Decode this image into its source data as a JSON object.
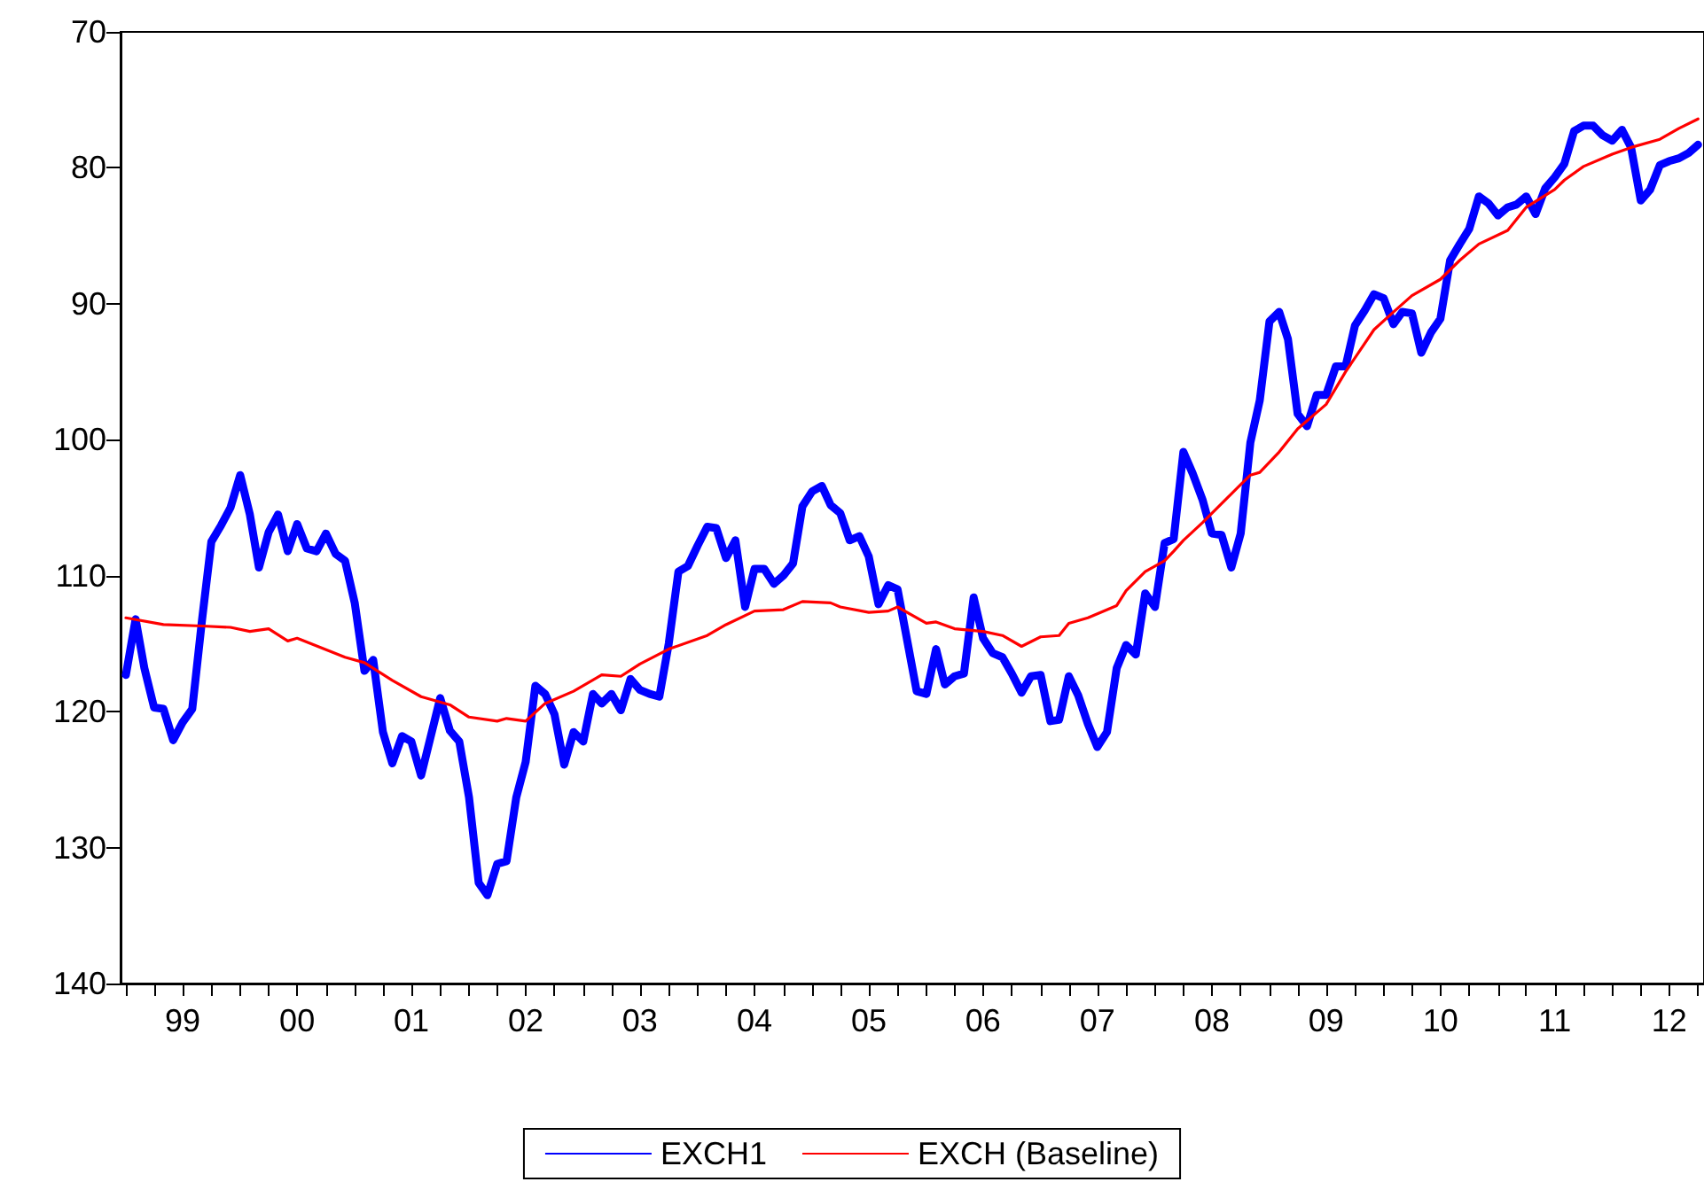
{
  "chart_data": {
    "type": "line",
    "x": [
      "1999-01",
      "1999-02",
      "1999-03",
      "1999-04",
      "1999-05",
      "1999-06",
      "1999-07",
      "1999-08",
      "1999-09",
      "1999-10",
      "1999-11",
      "1999-12",
      "2000-01",
      "2000-02",
      "2000-03",
      "2000-04",
      "2000-05",
      "2000-06",
      "2000-07",
      "2000-08",
      "2000-09",
      "2000-10",
      "2000-11",
      "2000-12",
      "2001-01",
      "2001-02",
      "2001-03",
      "2001-04",
      "2001-05",
      "2001-06",
      "2001-07",
      "2001-08",
      "2001-09",
      "2001-10",
      "2001-11",
      "2001-12",
      "2002-01",
      "2002-02",
      "2002-03",
      "2002-04",
      "2002-05",
      "2002-06",
      "2002-07",
      "2002-08",
      "2002-09",
      "2002-10",
      "2002-11",
      "2002-12",
      "2003-01",
      "2003-02",
      "2003-03",
      "2003-04",
      "2003-05",
      "2003-06",
      "2003-07",
      "2003-08",
      "2003-09",
      "2003-10",
      "2003-11",
      "2003-12",
      "2004-01",
      "2004-02",
      "2004-03",
      "2004-04",
      "2004-05",
      "2004-06",
      "2004-07",
      "2004-08",
      "2004-09",
      "2004-10",
      "2004-11",
      "2004-12",
      "2005-01",
      "2005-02",
      "2005-03",
      "2005-04",
      "2005-05",
      "2005-06",
      "2005-07",
      "2005-08",
      "2005-09",
      "2005-10",
      "2005-11",
      "2005-12",
      "2006-01",
      "2006-02",
      "2006-03",
      "2006-04",
      "2006-05",
      "2006-06",
      "2006-07",
      "2006-08",
      "2006-09",
      "2006-10",
      "2006-11",
      "2006-12",
      "2007-01",
      "2007-02",
      "2007-03",
      "2007-04",
      "2007-05",
      "2007-06",
      "2007-07",
      "2007-08",
      "2007-09",
      "2007-10",
      "2007-11",
      "2007-12",
      "2008-01",
      "2008-02",
      "2008-03",
      "2008-04",
      "2008-05",
      "2008-06",
      "2008-07",
      "2008-08",
      "2008-09",
      "2008-10",
      "2008-11",
      "2008-12",
      "2009-01",
      "2009-02",
      "2009-03",
      "2009-04",
      "2009-05",
      "2009-06",
      "2009-07",
      "2009-08",
      "2009-09",
      "2009-10",
      "2009-11",
      "2009-12",
      "2010-01",
      "2010-02",
      "2010-03",
      "2010-04",
      "2010-05",
      "2010-06",
      "2010-07",
      "2010-08",
      "2010-09",
      "2010-10",
      "2010-11",
      "2010-12",
      "2011-01",
      "2011-02",
      "2011-03",
      "2011-04",
      "2011-05",
      "2011-06",
      "2011-07",
      "2011-08",
      "2011-09",
      "2011-10",
      "2011-11",
      "2011-12",
      "2012-01",
      "2012-02",
      "2012-03",
      "2012-04",
      "2012-05",
      "2012-06",
      "2012-07",
      "2012-08",
      "2012-09",
      "2012-10"
    ],
    "series": [
      {
        "name": "EXCH1",
        "color": "#0000ff",
        "values": [
          117.3,
          113.2,
          116.8,
          119.7,
          119.8,
          122.1,
          120.8,
          119.8,
          113.3,
          107.5,
          106.3,
          105,
          102.6,
          105.5,
          109.4,
          106.8,
          105.5,
          108.2,
          106.2,
          108,
          108.2,
          106.9,
          108.4,
          108.9,
          112,
          117,
          116.2,
          121.5,
          123.8,
          121.8,
          122.2,
          124.7,
          121.8,
          119,
          121.4,
          122.2,
          126.3,
          132.6,
          133.5,
          131.2,
          131,
          126.3,
          123.7,
          118.1,
          118.7,
          120.2,
          123.9,
          121.5,
          122.2,
          118.7,
          119.4,
          118.7,
          119.9,
          117.6,
          118.4,
          118.7,
          118.9,
          115,
          109.7,
          109.3,
          107.8,
          106.4,
          106.5,
          108.7,
          107.4,
          112.3,
          109.5,
          109.5,
          110.6,
          110,
          109.1,
          104.9,
          103.8,
          103.4,
          104.8,
          105.4,
          107.4,
          107.1,
          108.6,
          112.1,
          110.7,
          111,
          114.8,
          118.5,
          118.7,
          115.4,
          118,
          117.4,
          117.2,
          111.6,
          114.6,
          115.7,
          116,
          117.2,
          118.6,
          117.4,
          117.3,
          120.7,
          120.6,
          117.4,
          118.8,
          120.9,
          122.6,
          121.5,
          116.8,
          115.1,
          115.8,
          111.3,
          112.3,
          107.6,
          107.3,
          100.9,
          102.5,
          104.4,
          106.9,
          107,
          109.4,
          106.9,
          100.2,
          97.1,
          91.3,
          90.6,
          92.6,
          98.1,
          99,
          96.7,
          96.7,
          94.6,
          94.6,
          91.6,
          90.5,
          89.3,
          89.6,
          91.5,
          90.6,
          90.7,
          93.6,
          92.1,
          91.1,
          86.8,
          85.6,
          84.5,
          82.1,
          82.6,
          83.5,
          82.9,
          82.7,
          82.1,
          83.4,
          81.5,
          80.7,
          79.7,
          77.3,
          76.9,
          76.9,
          77.6,
          78,
          77.2,
          78.5,
          82.4,
          81.6,
          79.8,
          79.5,
          79.3,
          78.9,
          78.3
        ]
      },
      {
        "name": "EXCH (Baseline)",
        "color": "#ff0000",
        "x": [
          "1999-01",
          "1999-05",
          "1999-09",
          "1999-12",
          "2000-02",
          "2000-04",
          "2000-06",
          "2000-07",
          "2000-12",
          "2001-02",
          "2001-05",
          "2001-08",
          "2001-11",
          "2002-01",
          "2002-04",
          "2002-05",
          "2002-07",
          "2002-09",
          "2002-12",
          "2003-03",
          "2003-05",
          "2003-07",
          "2003-10",
          "2004-02",
          "2004-04",
          "2004-07",
          "2004-10",
          "2004-12",
          "2005-03",
          "2005-04",
          "2005-07",
          "2005-09",
          "2005-10",
          "2006-01",
          "2006-02",
          "2006-04",
          "2006-07",
          "2006-09",
          "2006-11",
          "2007-01",
          "2007-03",
          "2007-04",
          "2007-06",
          "2007-09",
          "2007-10",
          "2007-12",
          "2008-02",
          "2008-03",
          "2008-04",
          "2008-06",
          "2008-10",
          "2008-11",
          "2008-12",
          "2009-02",
          "2009-04",
          "2009-07",
          "2009-09",
          "2009-12",
          "2010-02",
          "2010-04",
          "2010-07",
          "2010-09",
          "2010-11",
          "2011-02",
          "2011-04",
          "2011-07",
          "2011-08",
          "2011-10",
          "2012-01",
          "2012-03",
          "2012-06",
          "2012-08",
          "2012-10"
        ],
        "values": [
          113.1,
          113.6,
          113.7,
          113.8,
          114.1,
          113.9,
          114.8,
          114.6,
          116,
          116.4,
          117.7,
          118.9,
          119.5,
          120.4,
          120.7,
          120.5,
          120.7,
          119.4,
          118.5,
          117.3,
          117.4,
          116.5,
          115.4,
          114.4,
          113.6,
          112.6,
          112.5,
          111.9,
          112,
          112.3,
          112.7,
          112.6,
          112.3,
          113.5,
          113.4,
          113.9,
          114.1,
          114.4,
          115.2,
          114.5,
          114.4,
          113.5,
          113.1,
          112.2,
          111.1,
          109.7,
          108.9,
          108.2,
          107.4,
          106.1,
          103.3,
          102.6,
          102.4,
          100.9,
          99.2,
          97.4,
          95,
          91.9,
          90.6,
          89.4,
          88.2,
          86.8,
          85.6,
          84.6,
          82.9,
          81.6,
          80.9,
          79.9,
          79,
          78.5,
          77.9,
          77.1,
          76.4
        ]
      }
    ],
    "xlim": [
      "1998-12-15",
      "2012-10-20"
    ],
    "xticks": [
      {
        "value": "1999-01",
        "label": null
      },
      {
        "value": "1999-04",
        "label": null
      },
      {
        "value": "1999-07",
        "label": "99"
      },
      {
        "value": "1999-10",
        "label": null
      },
      {
        "value": "2000-01",
        "label": null
      },
      {
        "value": "2000-04",
        "label": null
      },
      {
        "value": "2000-07",
        "label": "00"
      },
      {
        "value": "2000-10",
        "label": null
      },
      {
        "value": "2001-01",
        "label": null
      },
      {
        "value": "2001-04",
        "label": null
      },
      {
        "value": "2001-07",
        "label": "01"
      },
      {
        "value": "2001-10",
        "label": null
      },
      {
        "value": "2002-01",
        "label": null
      },
      {
        "value": "2002-04",
        "label": null
      },
      {
        "value": "2002-07",
        "label": "02"
      },
      {
        "value": "2002-10",
        "label": null
      },
      {
        "value": "2003-01",
        "label": null
      },
      {
        "value": "2003-04",
        "label": null
      },
      {
        "value": "2003-07",
        "label": "03"
      },
      {
        "value": "2003-10",
        "label": null
      },
      {
        "value": "2004-01",
        "label": null
      },
      {
        "value": "2004-04",
        "label": null
      },
      {
        "value": "2004-07",
        "label": "04"
      },
      {
        "value": "2004-10",
        "label": null
      },
      {
        "value": "2005-01",
        "label": null
      },
      {
        "value": "2005-04",
        "label": null
      },
      {
        "value": "2005-07",
        "label": "05"
      },
      {
        "value": "2005-10",
        "label": null
      },
      {
        "value": "2006-01",
        "label": null
      },
      {
        "value": "2006-04",
        "label": null
      },
      {
        "value": "2006-07",
        "label": "06"
      },
      {
        "value": "2006-10",
        "label": null
      },
      {
        "value": "2007-01",
        "label": null
      },
      {
        "value": "2007-04",
        "label": null
      },
      {
        "value": "2007-07",
        "label": "07"
      },
      {
        "value": "2007-10",
        "label": null
      },
      {
        "value": "2008-01",
        "label": null
      },
      {
        "value": "2008-04",
        "label": null
      },
      {
        "value": "2008-07",
        "label": "08"
      },
      {
        "value": "2008-10",
        "label": null
      },
      {
        "value": "2009-01",
        "label": null
      },
      {
        "value": "2009-04",
        "label": null
      },
      {
        "value": "2009-07",
        "label": "09"
      },
      {
        "value": "2009-10",
        "label": null
      },
      {
        "value": "2010-01",
        "label": null
      },
      {
        "value": "2010-04",
        "label": null
      },
      {
        "value": "2010-07",
        "label": "10"
      },
      {
        "value": "2010-10",
        "label": null
      },
      {
        "value": "2011-01",
        "label": null
      },
      {
        "value": "2011-04",
        "label": null
      },
      {
        "value": "2011-07",
        "label": "11"
      },
      {
        "value": "2011-10",
        "label": null
      },
      {
        "value": "2012-01",
        "label": null
      },
      {
        "value": "2012-04",
        "label": null
      },
      {
        "value": "2012-07",
        "label": "12"
      },
      {
        "value": "2012-10",
        "label": null
      }
    ],
    "ylim": [
      140,
      70
    ],
    "yticks": [
      70,
      80,
      90,
      100,
      110,
      120,
      130,
      140
    ],
    "grid": false,
    "legend": "bottom",
    "marker": "none"
  }
}
